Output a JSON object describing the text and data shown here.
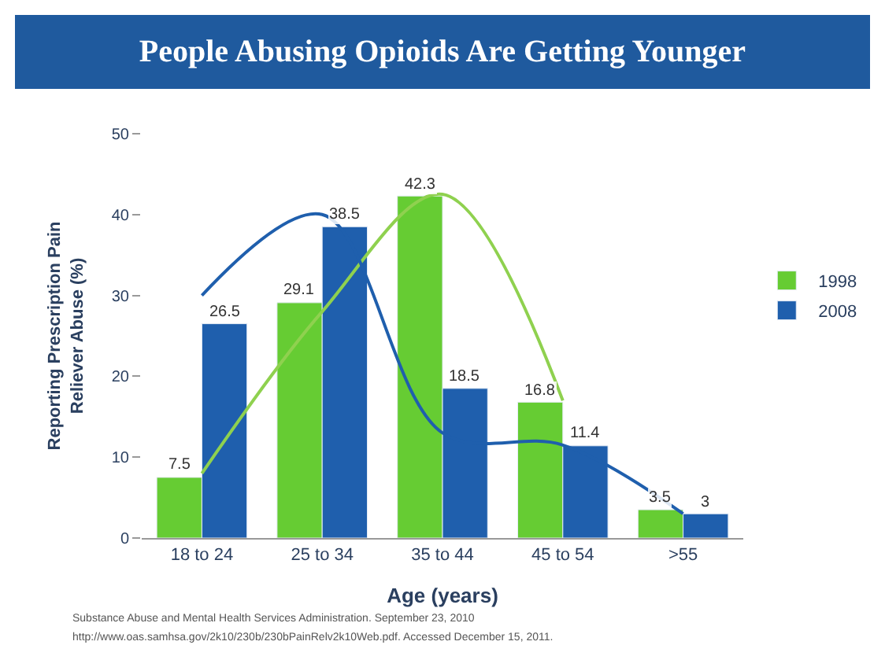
{
  "chart_data": {
    "type": "bar",
    "title": "People Abusing Opioids Are Getting Younger",
    "xlabel": "Age (years)",
    "ylabel": "Reporting Prescription Pain Reliever Abuse (%)",
    "categories": [
      "18 to 24",
      "25 to 34",
      "35 to 44",
      "45 to 54",
      ">55"
    ],
    "series": [
      {
        "type": "line",
        "color": "#8fd14f",
        "values": [
          8,
          28,
          42.5,
          17,
          null
        ]
      },
      {
        "type": "line",
        "color": "#1f5fad",
        "values": [
          30,
          40,
          13,
          11.5,
          3
        ]
      },
      {
        "name": "1998",
        "color": "#66cc33",
        "values": [
          7.5,
          29.1,
          42.3,
          16.8,
          3.5
        ],
        "value_labels": [
          "7.5",
          "29.1",
          "42.3",
          "16.8",
          "3.5"
        ]
      },
      {
        "name": "2008",
        "color": "#1f5fad",
        "values": [
          26.5,
          38.5,
          18.5,
          11.4,
          3
        ],
        "value_labels": [
          "26.5",
          "38.5",
          "18.5",
          "11.4",
          "3"
        ]
      }
    ],
    "ylim": [
      0,
      50
    ],
    "yticks": [
      0,
      10,
      20,
      30,
      40,
      50
    ],
    "legend": "right",
    "annotations": [
      "Substance Abuse and Mental Health Services Administration. September 23, 2010",
      "http://www.oas.samhsa.gov/2k10/230b/230bPainRelv2k10Web.pdf. Accessed December 15, 2011."
    ]
  }
}
